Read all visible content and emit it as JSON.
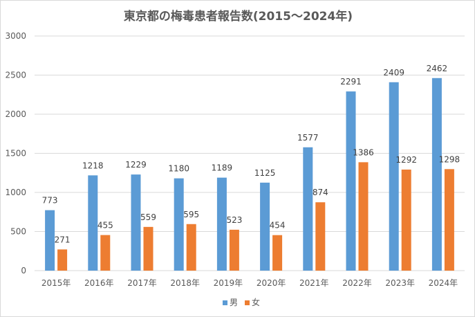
{
  "chart_data": {
    "type": "bar",
    "title": "東京都の梅毒患者報告数(2015～2024年)",
    "categories": [
      "2015年",
      "2016年",
      "2017年",
      "2018年",
      "2019年",
      "2020年",
      "2021年",
      "2022年",
      "2023年",
      "2024年"
    ],
    "series": [
      {
        "name": "男",
        "color": "#5b9bd5",
        "values": [
          773,
          1218,
          1229,
          1180,
          1189,
          1125,
          1577,
          2291,
          2409,
          2462
        ]
      },
      {
        "name": "女",
        "color": "#ed7d31",
        "values": [
          271,
          455,
          559,
          595,
          523,
          454,
          874,
          1386,
          1292,
          1298
        ]
      }
    ],
    "ylim": [
      0,
      3000
    ],
    "yticks": [
      0,
      500,
      1000,
      1500,
      2000,
      2500,
      3000
    ],
    "grid": true,
    "legend_position": "bottom",
    "xlabel": "",
    "ylabel": ""
  }
}
